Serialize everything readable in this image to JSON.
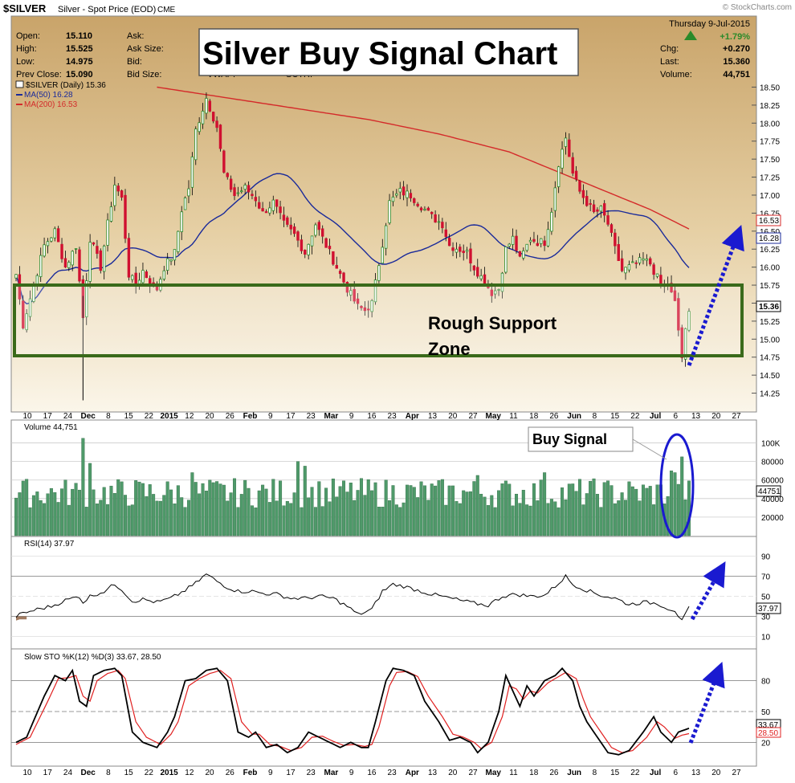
{
  "header": {
    "symbol": "$SILVER",
    "description": "Silver - Spot Price (EOD)",
    "exchange": "CME",
    "watermark": "© StockCharts.com",
    "date": "Thursday  9-Jul-2015",
    "change_pct": "+1.79%",
    "labels": {
      "open": "Open:",
      "high": "High:",
      "low": "Low:",
      "prev_close": "Prev Close:",
      "ask": "Ask:",
      "ask_size": "Ask Size:",
      "bid": "Bid:",
      "bid_size": "Bid Size:",
      "chg": "Chg:",
      "last": "Last:",
      "volume": "Volume:"
    },
    "values": {
      "open": "15.110",
      "high": "15.525",
      "low": "14.975",
      "prev_close": "15.090",
      "chg": "+0.270",
      "last": "15.360",
      "volume": "44,751"
    },
    "hidden_text": {
      "vwap": "VWAP:",
      "sctr": "SCTR:"
    }
  },
  "colors": {
    "up": "#2a8a2a",
    "down": "#d01030",
    "ma50": "#1a2a9a",
    "ma200": "#d42a2a",
    "support": "#3a6a1a",
    "annotation": "#1a1ad0",
    "volume": "#4f9a6a"
  },
  "chart_data": [
    {
      "type": "candlestick",
      "title": "Silver Buy Signal Chart",
      "legend": [
        "$SILVER (Daily) 15.36",
        "MA(50) 16.28",
        "MA(200) 16.53"
      ],
      "ylim": [
        14.1,
        18.55
      ],
      "yticks": [
        "18.50",
        "18.25",
        "18.00",
        "17.75",
        "17.50",
        "17.25",
        "17.00",
        "16.75",
        "16.50",
        "16.25",
        "16.00",
        "15.75",
        "15.50",
        "15.25",
        "15.00",
        "14.75",
        "14.50",
        "14.25"
      ],
      "price_tags": {
        "last": "15.36",
        "ma200": "16.53",
        "ma50": "16.28"
      },
      "x_labels": [
        "10",
        "17",
        "24",
        "Dec",
        "8",
        "15",
        "22",
        "2015",
        "12",
        "20",
        "26",
        "Feb",
        "9",
        "17",
        "23",
        "Mar",
        "9",
        "16",
        "23",
        "Apr",
        "13",
        "20",
        "27",
        "May",
        "11",
        "18",
        "26",
        "Jun",
        "8",
        "15",
        "22",
        "Jul",
        "6",
        "13",
        "20",
        "27"
      ],
      "annotations": {
        "support_zone": "Rough Support Zone"
      },
      "anchors": [
        [
          0,
          15.9
        ],
        [
          2,
          15.2
        ],
        [
          5,
          15.75
        ],
        [
          8,
          16.3
        ],
        [
          11,
          16.5
        ],
        [
          14,
          16.0
        ],
        [
          17,
          16.3
        ],
        [
          19,
          15.3
        ],
        [
          21,
          16.4
        ],
        [
          24,
          16.0
        ],
        [
          26,
          16.6
        ],
        [
          28,
          17.15
        ],
        [
          30,
          16.95
        ],
        [
          32,
          15.9
        ],
        [
          34,
          15.75
        ],
        [
          36,
          15.95
        ],
        [
          38,
          15.8
        ],
        [
          40,
          15.7
        ],
        [
          42,
          16.0
        ],
        [
          45,
          16.2
        ],
        [
          47,
          16.8
        ],
        [
          49,
          17.1
        ],
        [
          51,
          17.9
        ],
        [
          54,
          18.35
        ],
        [
          57,
          17.95
        ],
        [
          59,
          17.3
        ],
        [
          62,
          17.0
        ],
        [
          65,
          17.1
        ],
        [
          68,
          16.95
        ],
        [
          70,
          16.75
        ],
        [
          73,
          16.9
        ],
        [
          76,
          16.6
        ],
        [
          79,
          16.45
        ],
        [
          82,
          16.2
        ],
        [
          85,
          16.6
        ],
        [
          88,
          16.3
        ],
        [
          91,
          16.0
        ],
        [
          94,
          15.7
        ],
        [
          97,
          15.45
        ],
        [
          99,
          15.4
        ],
        [
          101,
          15.5
        ],
        [
          103,
          16.05
        ],
        [
          106,
          16.9
        ],
        [
          109,
          17.05
        ],
        [
          112,
          17.0
        ],
        [
          115,
          16.85
        ],
        [
          118,
          16.7
        ],
        [
          121,
          16.6
        ],
        [
          123,
          16.3
        ],
        [
          126,
          16.25
        ],
        [
          128,
          16.2
        ],
        [
          130,
          16.0
        ],
        [
          133,
          15.8
        ],
        [
          135,
          15.65
        ],
        [
          137,
          15.7
        ],
        [
          139,
          16.25
        ],
        [
          141,
          16.4
        ],
        [
          143,
          16.1
        ],
        [
          146,
          16.4
        ],
        [
          148,
          16.35
        ],
        [
          150,
          16.35
        ],
        [
          152,
          16.8
        ],
        [
          154,
          17.45
        ],
        [
          156,
          17.8
        ],
        [
          158,
          17.3
        ],
        [
          160,
          17.05
        ],
        [
          162,
          16.9
        ],
        [
          164,
          16.75
        ],
        [
          166,
          16.8
        ],
        [
          168,
          16.6
        ],
        [
          170,
          16.25
        ],
        [
          172,
          15.95
        ],
        [
          174,
          16.0
        ],
        [
          176,
          16.05
        ],
        [
          178,
          16.1
        ],
        [
          180,
          16.05
        ],
        [
          183,
          15.75
        ],
        [
          185,
          15.75
        ],
        [
          187,
          15.5
        ],
        [
          189,
          14.75
        ],
        [
          190,
          15.1
        ],
        [
          191,
          15.36
        ]
      ]
    },
    {
      "type": "bar",
      "title": "Volume 44,751",
      "ylim": [
        0,
        110000
      ],
      "yticks": [
        "100K",
        "80000",
        "60000",
        "40000",
        "20000"
      ],
      "last_value_tag": "44751",
      "annotations": {
        "buy_signal": "Buy Signal"
      },
      "spikes": [
        [
          19,
          105000
        ],
        [
          21,
          78000
        ],
        [
          50,
          68000
        ],
        [
          80,
          80000
        ],
        [
          82,
          75000
        ],
        [
          131,
          65000
        ],
        [
          150,
          68000
        ],
        [
          186,
          70000
        ],
        [
          187,
          68000
        ],
        [
          189,
          85000
        ]
      ]
    },
    {
      "type": "line",
      "title": "RSI(14) 37.97",
      "ylim": [
        0,
        100
      ],
      "yticks": [
        "90",
        "70",
        "50",
        "30",
        "10"
      ],
      "last_value_tag": "37.97",
      "anchors": [
        [
          0,
          30
        ],
        [
          2,
          33
        ],
        [
          6,
          37
        ],
        [
          10,
          40
        ],
        [
          14,
          46
        ],
        [
          18,
          50
        ],
        [
          19,
          44
        ],
        [
          21,
          50
        ],
        [
          25,
          55
        ],
        [
          28,
          62
        ],
        [
          30,
          57
        ],
        [
          33,
          45
        ],
        [
          36,
          47
        ],
        [
          40,
          44
        ],
        [
          44,
          48
        ],
        [
          48,
          56
        ],
        [
          51,
          63
        ],
        [
          54,
          72
        ],
        [
          57,
          65
        ],
        [
          60,
          59
        ],
        [
          63,
          55
        ],
        [
          67,
          55
        ],
        [
          70,
          53
        ],
        [
          74,
          52
        ],
        [
          78,
          48
        ],
        [
          82,
          48
        ],
        [
          86,
          50
        ],
        [
          90,
          48
        ],
        [
          94,
          40
        ],
        [
          97,
          32
        ],
        [
          99,
          34
        ],
        [
          101,
          37
        ],
        [
          104,
          55
        ],
        [
          107,
          62
        ],
        [
          110,
          60
        ],
        [
          114,
          56
        ],
        [
          118,
          52
        ],
        [
          122,
          49
        ],
        [
          126,
          46
        ],
        [
          130,
          43
        ],
        [
          134,
          41
        ],
        [
          138,
          50
        ],
        [
          142,
          52
        ],
        [
          146,
          50
        ],
        [
          150,
          51
        ],
        [
          154,
          63
        ],
        [
          156,
          70
        ],
        [
          158,
          62
        ],
        [
          162,
          56
        ],
        [
          166,
          51
        ],
        [
          170,
          48
        ],
        [
          174,
          42
        ],
        [
          178,
          44
        ],
        [
          182,
          43
        ],
        [
          185,
          38
        ],
        [
          187,
          36
        ],
        [
          189,
          25
        ],
        [
          191,
          37.97
        ]
      ]
    },
    {
      "type": "line",
      "title": "Slow STO %K(12) %D(3) 33.67, 28.50",
      "series_k_label": "33.67",
      "series_d_label": "28.50",
      "ylim": [
        0,
        100
      ],
      "yticks": [
        "80",
        "50",
        "20"
      ],
      "anchors_k": [
        [
          0,
          20
        ],
        [
          3,
          25
        ],
        [
          8,
          65
        ],
        [
          11,
          85
        ],
        [
          14,
          80
        ],
        [
          16,
          90
        ],
        [
          18,
          60
        ],
        [
          20,
          55
        ],
        [
          22,
          85
        ],
        [
          25,
          90
        ],
        [
          28,
          92
        ],
        [
          30,
          85
        ],
        [
          33,
          30
        ],
        [
          36,
          20
        ],
        [
          40,
          15
        ],
        [
          43,
          30
        ],
        [
          45,
          45
        ],
        [
          48,
          80
        ],
        [
          51,
          82
        ],
        [
          54,
          90
        ],
        [
          57,
          92
        ],
        [
          60,
          80
        ],
        [
          63,
          30
        ],
        [
          66,
          25
        ],
        [
          68,
          30
        ],
        [
          71,
          15
        ],
        [
          74,
          18
        ],
        [
          77,
          10
        ],
        [
          80,
          15
        ],
        [
          83,
          30
        ],
        [
          86,
          25
        ],
        [
          89,
          20
        ],
        [
          92,
          15
        ],
        [
          95,
          20
        ],
        [
          98,
          15
        ],
        [
          100,
          15
        ],
        [
          102,
          40
        ],
        [
          105,
          80
        ],
        [
          107,
          92
        ],
        [
          110,
          90
        ],
        [
          113,
          85
        ],
        [
          116,
          60
        ],
        [
          120,
          40
        ],
        [
          123,
          22
        ],
        [
          126,
          25
        ],
        [
          129,
          20
        ],
        [
          131,
          10
        ],
        [
          134,
          20
        ],
        [
          137,
          50
        ],
        [
          139,
          85
        ],
        [
          141,
          70
        ],
        [
          143,
          55
        ],
        [
          145,
          75
        ],
        [
          147,
          65
        ],
        [
          150,
          80
        ],
        [
          153,
          85
        ],
        [
          155,
          92
        ],
        [
          158,
          80
        ],
        [
          160,
          55
        ],
        [
          162,
          40
        ],
        [
          165,
          25
        ],
        [
          168,
          10
        ],
        [
          171,
          8
        ],
        [
          174,
          12
        ],
        [
          178,
          30
        ],
        [
          181,
          45
        ],
        [
          183,
          30
        ],
        [
          186,
          20
        ],
        [
          188,
          30
        ],
        [
          191,
          33.67
        ]
      ],
      "anchors_d": [
        [
          0,
          18
        ],
        [
          4,
          25
        ],
        [
          9,
          60
        ],
        [
          12,
          82
        ],
        [
          15,
          83
        ],
        [
          17,
          85
        ],
        [
          19,
          65
        ],
        [
          21,
          60
        ],
        [
          23,
          80
        ],
        [
          26,
          87
        ],
        [
          29,
          90
        ],
        [
          31,
          82
        ],
        [
          34,
          40
        ],
        [
          37,
          25
        ],
        [
          41,
          18
        ],
        [
          44,
          28
        ],
        [
          46,
          40
        ],
        [
          49,
          75
        ],
        [
          52,
          82
        ],
        [
          55,
          87
        ],
        [
          58,
          90
        ],
        [
          61,
          82
        ],
        [
          64,
          40
        ],
        [
          67,
          28
        ],
        [
          69,
          28
        ],
        [
          72,
          18
        ],
        [
          75,
          16
        ],
        [
          78,
          12
        ],
        [
          81,
          15
        ],
        [
          84,
          25
        ],
        [
          87,
          26
        ],
        [
          90,
          21
        ],
        [
          93,
          17
        ],
        [
          96,
          18
        ],
        [
          99,
          16
        ],
        [
          101,
          18
        ],
        [
          103,
          35
        ],
        [
          106,
          75
        ],
        [
          108,
          88
        ],
        [
          111,
          89
        ],
        [
          114,
          84
        ],
        [
          117,
          65
        ],
        [
          121,
          45
        ],
        [
          124,
          28
        ],
        [
          127,
          25
        ],
        [
          130,
          20
        ],
        [
          132,
          14
        ],
        [
          135,
          20
        ],
        [
          138,
          45
        ],
        [
          140,
          75
        ],
        [
          142,
          72
        ],
        [
          144,
          62
        ],
        [
          146,
          70
        ],
        [
          148,
          68
        ],
        [
          151,
          78
        ],
        [
          154,
          84
        ],
        [
          156,
          88
        ],
        [
          159,
          82
        ],
        [
          161,
          62
        ],
        [
          163,
          45
        ],
        [
          166,
          30
        ],
        [
          169,
          15
        ],
        [
          172,
          10
        ],
        [
          175,
          12
        ],
        [
          179,
          25
        ],
        [
          182,
          40
        ],
        [
          184,
          35
        ],
        [
          187,
          24
        ],
        [
          189,
          27
        ],
        [
          191,
          28.5
        ]
      ]
    }
  ]
}
